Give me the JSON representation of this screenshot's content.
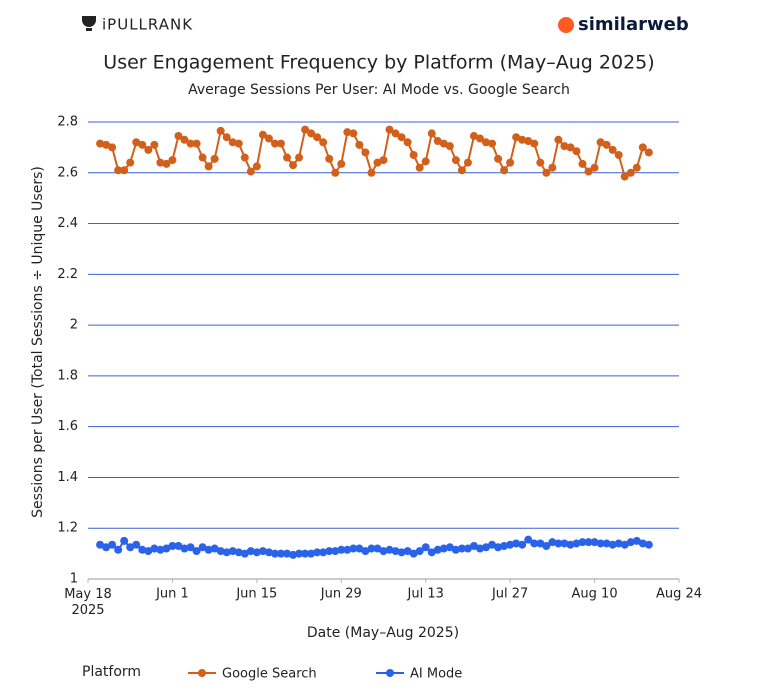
{
  "brand_left": "iPULLRANK",
  "brand_right": "similarweb",
  "chart_data": {
    "type": "line",
    "title": "User Engagement Frequency by Platform (May–Aug 2025)",
    "subtitle": "Average Sessions Per User: AI Mode vs. Google Search",
    "x_label": "Date (May–Aug 2025)",
    "y_label": "Sessions per User (Total Sessions ÷ Unique Users)",
    "legend_title": "Platform",
    "grid": true,
    "x": [
      "2025-05-20",
      "2025-05-21",
      "2025-05-22",
      "2025-05-23",
      "2025-05-24",
      "2025-05-25",
      "2025-05-26",
      "2025-05-27",
      "2025-05-28",
      "2025-05-29",
      "2025-05-30",
      "2025-05-31",
      "2025-06-01",
      "2025-06-02",
      "2025-06-03",
      "2025-06-04",
      "2025-06-05",
      "2025-06-06",
      "2025-06-07",
      "2025-06-08",
      "2025-06-09",
      "2025-06-10",
      "2025-06-11",
      "2025-06-12",
      "2025-06-13",
      "2025-06-14",
      "2025-06-15",
      "2025-06-16",
      "2025-06-17",
      "2025-06-18",
      "2025-06-19",
      "2025-06-20",
      "2025-06-21",
      "2025-06-22",
      "2025-06-23",
      "2025-06-24",
      "2025-06-25",
      "2025-06-26",
      "2025-06-27",
      "2025-06-28",
      "2025-06-29",
      "2025-06-30",
      "2025-07-01",
      "2025-07-02",
      "2025-07-03",
      "2025-07-04",
      "2025-07-05",
      "2025-07-06",
      "2025-07-07",
      "2025-07-08",
      "2025-07-09",
      "2025-07-10",
      "2025-07-11",
      "2025-07-12",
      "2025-07-13",
      "2025-07-14",
      "2025-07-15",
      "2025-07-16",
      "2025-07-17",
      "2025-07-18",
      "2025-07-19",
      "2025-07-20",
      "2025-07-21",
      "2025-07-22",
      "2025-07-23",
      "2025-07-24",
      "2025-07-25",
      "2025-07-26",
      "2025-07-27",
      "2025-07-28",
      "2025-07-29",
      "2025-07-30",
      "2025-07-31",
      "2025-08-01",
      "2025-08-02",
      "2025-08-03",
      "2025-08-04",
      "2025-08-05",
      "2025-08-06",
      "2025-08-07",
      "2025-08-08",
      "2025-08-09",
      "2025-08-10",
      "2025-08-11",
      "2025-08-12",
      "2025-08-13",
      "2025-08-14",
      "2025-08-15",
      "2025-08-16",
      "2025-08-17",
      "2025-08-18",
      "2025-08-19"
    ],
    "xlim": [
      "2025-05-18",
      "2025-08-24"
    ],
    "xticks": [
      {
        "value": "2025-05-18",
        "label": "May 18\n2025"
      },
      {
        "value": "2025-06-01",
        "label": "Jun 1"
      },
      {
        "value": "2025-06-15",
        "label": "Jun 15"
      },
      {
        "value": "2025-06-29",
        "label": "Jun 29"
      },
      {
        "value": "2025-07-13",
        "label": "Jul 13"
      },
      {
        "value": "2025-07-27",
        "label": "Jul 27"
      },
      {
        "value": "2025-08-10",
        "label": "Aug 10"
      },
      {
        "value": "2025-08-24",
        "label": "Aug 24"
      }
    ],
    "ylim": [
      1,
      2.8
    ],
    "yticks": [
      1,
      1.2,
      1.4,
      1.6,
      1.8,
      2,
      2.2,
      2.4,
      2.6,
      2.8
    ],
    "series": [
      {
        "name": "Google Search",
        "color": "#d2601a",
        "values": [
          2.715,
          2.71,
          2.7,
          2.61,
          2.61,
          2.64,
          2.72,
          2.71,
          2.69,
          2.71,
          2.64,
          2.635,
          2.65,
          2.745,
          2.73,
          2.715,
          2.715,
          2.66,
          2.625,
          2.655,
          2.765,
          2.74,
          2.72,
          2.715,
          2.66,
          2.605,
          2.625,
          2.75,
          2.735,
          2.715,
          2.715,
          2.66,
          2.63,
          2.66,
          2.77,
          2.755,
          2.74,
          2.72,
          2.655,
          2.6,
          2.635,
          2.76,
          2.755,
          2.71,
          2.68,
          2.6,
          2.64,
          2.65,
          2.77,
          2.755,
          2.74,
          2.72,
          2.67,
          2.62,
          2.645,
          2.755,
          2.725,
          2.715,
          2.705,
          2.65,
          2.61,
          2.64,
          2.745,
          2.735,
          2.72,
          2.715,
          2.655,
          2.61,
          2.64,
          2.74,
          2.73,
          2.725,
          2.715,
          2.64,
          2.6,
          2.62,
          2.73,
          2.705,
          2.7,
          2.685,
          2.635,
          2.605,
          2.62,
          2.72,
          2.71,
          2.69,
          2.67,
          2.585,
          2.6,
          2.62,
          2.7,
          2.68
        ]
      },
      {
        "name": "AI Mode",
        "color": "#2a63ea",
        "values": [
          1.135,
          1.125,
          1.135,
          1.115,
          1.15,
          1.125,
          1.135,
          1.115,
          1.11,
          1.12,
          1.115,
          1.12,
          1.13,
          1.13,
          1.12,
          1.125,
          1.11,
          1.125,
          1.115,
          1.12,
          1.11,
          1.105,
          1.11,
          1.105,
          1.1,
          1.11,
          1.105,
          1.11,
          1.105,
          1.1,
          1.1,
          1.1,
          1.095,
          1.1,
          1.1,
          1.1,
          1.105,
          1.105,
          1.11,
          1.11,
          1.115,
          1.115,
          1.12,
          1.12,
          1.11,
          1.12,
          1.12,
          1.11,
          1.115,
          1.11,
          1.105,
          1.11,
          1.1,
          1.11,
          1.125,
          1.105,
          1.115,
          1.12,
          1.125,
          1.115,
          1.12,
          1.12,
          1.13,
          1.12,
          1.125,
          1.135,
          1.125,
          1.13,
          1.135,
          1.14,
          1.135,
          1.155,
          1.14,
          1.14,
          1.13,
          1.145,
          1.14,
          1.14,
          1.135,
          1.14,
          1.145,
          1.145,
          1.145,
          1.14,
          1.14,
          1.135,
          1.14,
          1.135,
          1.145,
          1.15,
          1.14,
          1.135
        ]
      }
    ]
  }
}
